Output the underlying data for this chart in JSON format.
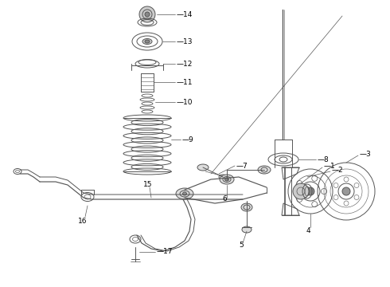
{
  "bg_color": "#ffffff",
  "line_color": "#555555",
  "label_color": "#000000",
  "figsize": [
    4.9,
    3.6
  ],
  "dpi": 100
}
